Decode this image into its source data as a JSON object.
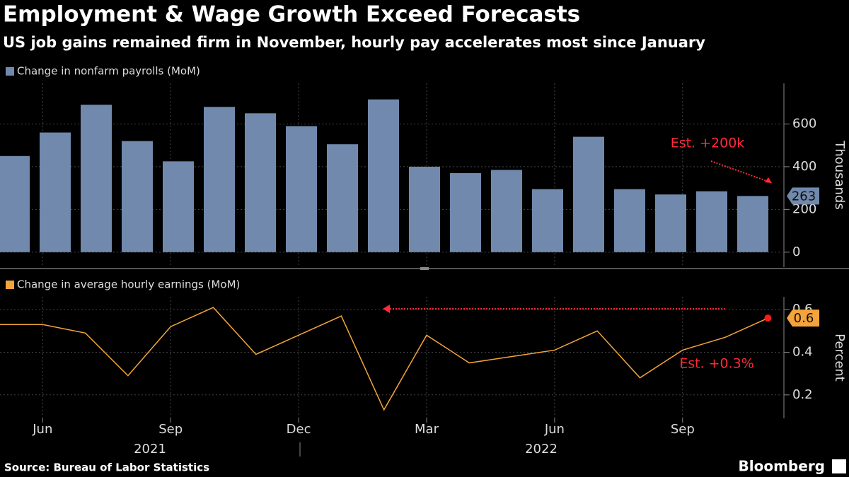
{
  "title": "Employment & Wage Growth Exceed Forecasts",
  "subtitle": "US job gains remained firm in November, hourly pay accelerates most since January",
  "source": "Source: Bureau of Labor Statistics",
  "brand": "Bloomberg",
  "year_labels": [
    "2021",
    "2022"
  ],
  "chart_data": [
    {
      "type": "bar",
      "categories": [
        null,
        "Jun",
        null,
        null,
        "Sep",
        null,
        null,
        "Dec",
        null,
        null,
        "Mar",
        null,
        null,
        "Jun",
        null,
        null,
        "Sep",
        null,
        null
      ],
      "series": [
        {
          "name": "Change in nonfarm payrolls (MoM)",
          "color": "#7189ad",
          "values": [
            450,
            560,
            690,
            520,
            425,
            680,
            650,
            590,
            505,
            715,
            400,
            370,
            385,
            295,
            540,
            295,
            270,
            285,
            263
          ]
        }
      ],
      "last_value_label": "263",
      "annotation": "Est. +200k",
      "ylabel": "Thousands",
      "ylim": [
        -70,
        790
      ],
      "yticks": [
        0,
        200,
        400,
        600
      ],
      "grid": true
    },
    {
      "type": "line",
      "categories": [
        null,
        "Jun",
        null,
        null,
        "Sep",
        null,
        null,
        "Dec",
        null,
        null,
        "Mar",
        null,
        null,
        "Jun",
        null,
        null,
        "Sep",
        null,
        null
      ],
      "series": [
        {
          "name": "Change in average hourly earnings (MoM)",
          "color": "#f5a43b",
          "values": [
            0.53,
            0.53,
            0.49,
            0.29,
            0.52,
            0.61,
            0.39,
            0.48,
            0.57,
            0.13,
            0.48,
            0.35,
            0.38,
            0.41,
            0.5,
            0.28,
            0.41,
            0.47,
            0.56
          ]
        }
      ],
      "last_value_label": "0.6",
      "annotation": "Est. +0.3%",
      "ylabel": "Percent",
      "ylim": [
        0.09,
        0.66
      ],
      "yticks": [
        0.2,
        0.4,
        0.6
      ],
      "grid": true
    }
  ]
}
